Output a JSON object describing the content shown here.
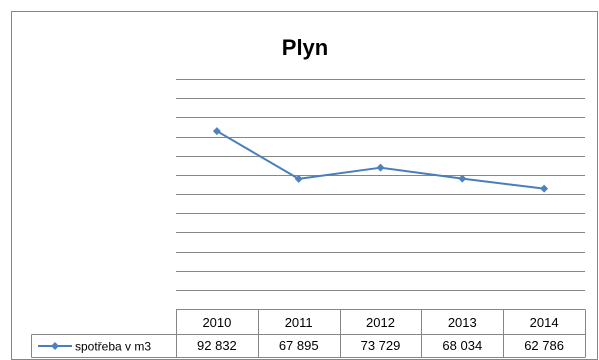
{
  "chart_data": {
    "type": "line",
    "title": "Plyn",
    "categories": [
      "2010",
      "2011",
      "2012",
      "2013",
      "2014"
    ],
    "series": [
      {
        "name": "spotřeba v m3",
        "values": [
          92832,
          67895,
          73729,
          68034,
          62786
        ],
        "labels": [
          "92 832",
          "67 895",
          "73 729",
          "68 034",
          "62 786"
        ]
      }
    ],
    "ylim": [
      0,
      120000
    ],
    "y_gridline_step": 10000,
    "grid": true,
    "legend": "data-table-left",
    "colors": {
      "series": "#4a7ebb",
      "marker": "#4f81bd",
      "grid": "#868686",
      "frame": "#868686"
    }
  }
}
